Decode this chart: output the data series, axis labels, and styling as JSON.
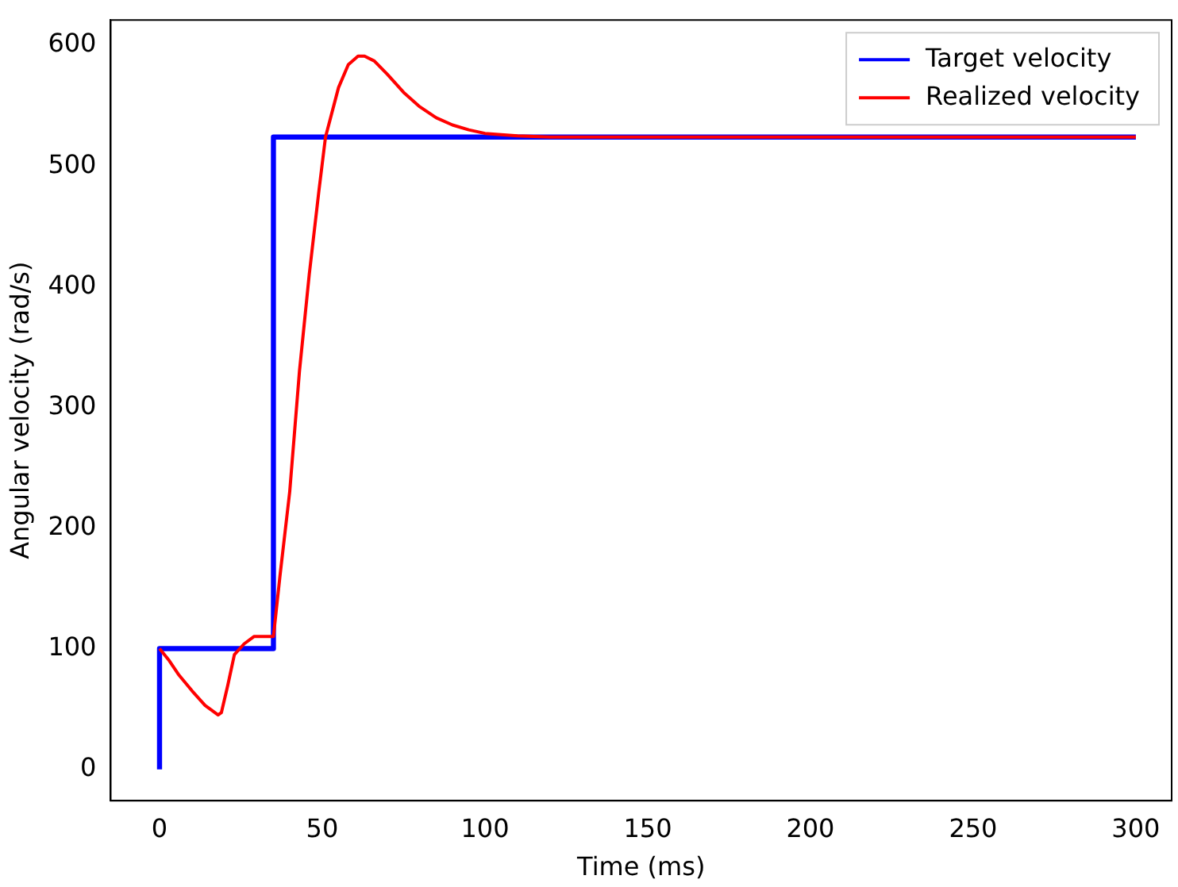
{
  "chart_data": {
    "type": "line",
    "xlabel": "Time (ms)",
    "ylabel": "Angular velocity (rad/s)",
    "xlim": [
      -15,
      311
    ],
    "ylim": [
      -26,
      621
    ],
    "xticks": [
      0,
      50,
      100,
      150,
      200,
      250,
      300
    ],
    "yticks": [
      0,
      100,
      200,
      300,
      400,
      500,
      600
    ],
    "grid": false,
    "legend": "top right",
    "marker": "none",
    "line_style": "solid",
    "series": [
      {
        "name": "Target velocity",
        "color": "#0000ff",
        "x": [
          0,
          0,
          35,
          35,
          300
        ],
        "values": [
          0,
          100,
          100,
          524,
          524
        ]
      },
      {
        "name": "Realized velocity",
        "color": "#ff0000",
        "x": [
          0,
          3,
          6,
          10,
          14,
          18,
          19,
          21,
          23,
          26,
          29,
          33,
          35,
          37,
          40,
          43,
          46,
          49,
          51,
          55,
          58,
          61,
          63,
          66,
          70,
          75,
          80,
          85,
          90,
          95,
          100,
          110,
          120,
          150,
          200,
          300
        ],
        "values": [
          100,
          90,
          78,
          65,
          53,
          45,
          47,
          70,
          95,
          104,
          110,
          110,
          110,
          160,
          230,
          330,
          410,
          480,
          524,
          565,
          584,
          591,
          591,
          587,
          576,
          561,
          549,
          540,
          534,
          530,
          527,
          525,
          524,
          524,
          524,
          524
        ]
      }
    ]
  }
}
